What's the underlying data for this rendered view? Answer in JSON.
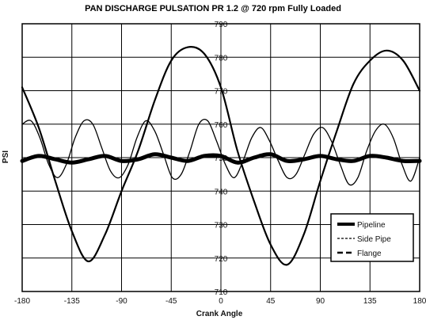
{
  "chart_data": {
    "type": "line",
    "title": "PAN DISCHARGE PULSATION  PR 1.2 @ 720 rpm Fully Loaded",
    "xlabel": "Crank Angle",
    "ylabel": "PSI",
    "xlim": [
      -180,
      180
    ],
    "ylim": [
      710,
      790
    ],
    "xticks": [
      -180,
      -135,
      -90,
      -45,
      0,
      45,
      90,
      135,
      180
    ],
    "yticks": [
      710,
      720,
      730,
      740,
      750,
      760,
      770,
      780,
      790
    ],
    "grid": true,
    "legend_position": "bottom-right",
    "series": [
      {
        "name": "Pipeline",
        "style": "thick-solid",
        "x": [
          -180,
          -165,
          -150,
          -135,
          -120,
          -105,
          -90,
          -75,
          -60,
          -45,
          -30,
          -15,
          0,
          15,
          30,
          45,
          60,
          75,
          90,
          105,
          120,
          135,
          150,
          165,
          180
        ],
        "y": [
          749,
          750.5,
          749.5,
          748.5,
          749.5,
          750.5,
          749,
          749.5,
          751,
          750,
          749,
          750.5,
          750.5,
          748.5,
          750,
          751,
          749,
          749.5,
          750.5,
          749.5,
          749,
          750.5,
          750,
          749,
          749
        ]
      },
      {
        "name": "Side Pipe",
        "style": "thin-solid",
        "x": [
          -180,
          -172,
          -164,
          -156,
          -148,
          -140,
          -132,
          -124,
          -116,
          -108,
          -100,
          -92,
          -84,
          -76,
          -68,
          -60,
          -52,
          -44,
          -36,
          -28,
          -20,
          -12,
          -4,
          4,
          12,
          20,
          28,
          36,
          44,
          52,
          60,
          68,
          76,
          84,
          92,
          100,
          108,
          116,
          124,
          132,
          140,
          148,
          156,
          164,
          172,
          180
        ],
        "y": [
          760,
          761,
          756,
          748,
          744,
          748,
          756,
          761,
          760,
          753,
          746,
          744,
          748,
          756,
          761,
          758,
          751,
          744,
          745,
          752,
          760,
          761,
          755,
          748,
          744,
          749,
          756,
          759,
          755,
          749,
          744,
          745,
          751,
          757,
          759,
          755,
          748,
          742,
          744,
          752,
          758,
          760,
          756,
          748,
          743,
          750
        ]
      },
      {
        "name": "Flange",
        "style": "dashed",
        "x": [
          -180,
          -165,
          -150,
          -135,
          -120,
          -105,
          -90,
          -75,
          -60,
          -45,
          -30,
          -15,
          0,
          15,
          30,
          45,
          60,
          75,
          90,
          105,
          120,
          135,
          150,
          165,
          180
        ],
        "y": [
          771,
          759,
          743,
          728,
          719,
          727,
          740,
          752,
          767,
          779,
          783,
          781,
          771,
          752,
          737,
          724,
          718,
          727,
          743,
          758,
          772,
          779,
          782,
          779,
          770
        ]
      }
    ]
  }
}
